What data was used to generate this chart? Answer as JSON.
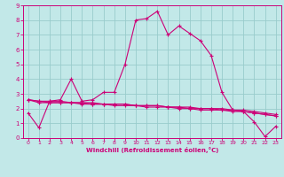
{
  "xlabel": "Windchill (Refroidissement éolien,°C)",
  "bg_color": "#c2e8e8",
  "line_color": "#cc0077",
  "grid_color": "#99cccc",
  "xlim": [
    -0.5,
    23.5
  ],
  "ylim": [
    0,
    9
  ],
  "xticks": [
    0,
    1,
    2,
    3,
    4,
    5,
    6,
    7,
    8,
    9,
    10,
    11,
    12,
    13,
    14,
    15,
    16,
    17,
    18,
    19,
    20,
    21,
    22,
    23
  ],
  "yticks": [
    0,
    1,
    2,
    3,
    4,
    5,
    6,
    7,
    8,
    9
  ],
  "series_main": [
    1.7,
    0.7,
    2.5,
    2.6,
    4.0,
    2.5,
    2.6,
    3.1,
    3.1,
    5.0,
    8.0,
    8.1,
    8.6,
    7.0,
    7.6,
    7.1,
    6.6,
    5.6,
    3.1,
    1.9,
    1.8,
    1.1,
    0.1,
    0.8
  ],
  "series_linear1": [
    2.6,
    2.4,
    2.4,
    2.4,
    2.4,
    2.4,
    2.3,
    2.3,
    2.3,
    2.3,
    2.2,
    2.2,
    2.2,
    2.1,
    2.1,
    2.1,
    2.0,
    2.0,
    2.0,
    1.9,
    1.9,
    1.8,
    1.7,
    1.6
  ],
  "series_linear2": [
    2.6,
    2.5,
    2.5,
    2.5,
    2.4,
    2.4,
    2.4,
    2.3,
    2.3,
    2.3,
    2.2,
    2.2,
    2.2,
    2.1,
    2.1,
    2.0,
    2.0,
    2.0,
    1.9,
    1.9,
    1.8,
    1.7,
    1.6,
    1.5
  ],
  "series_linear3": [
    2.6,
    2.5,
    2.4,
    2.4,
    2.4,
    2.3,
    2.3,
    2.3,
    2.2,
    2.2,
    2.2,
    2.1,
    2.1,
    2.1,
    2.0,
    2.0,
    1.9,
    1.9,
    1.9,
    1.8,
    1.8,
    1.7,
    1.6,
    1.5
  ]
}
